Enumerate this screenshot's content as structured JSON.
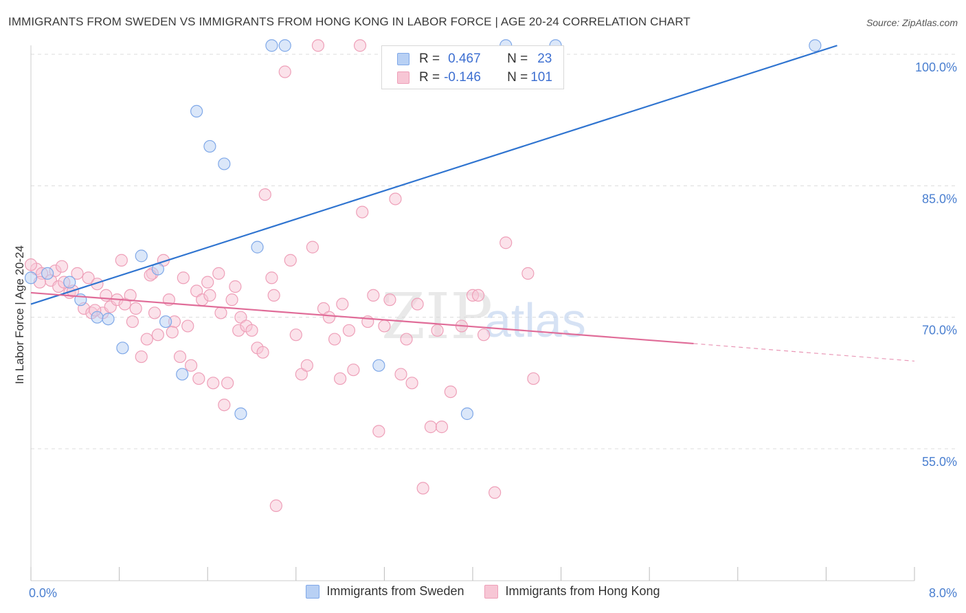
{
  "title": "IMMIGRANTS FROM SWEDEN VS IMMIGRANTS FROM HONG KONG IN LABOR FORCE | AGE 20-24 CORRELATION CHART",
  "source": "Source: ZipAtlas.com",
  "watermark": {
    "zip": "ZIP",
    "atlas": "atlas"
  },
  "colors": {
    "sweden": "#7fa8e8",
    "sweden_fill": "#b8d0f4",
    "sweden_line": "#2f74d0",
    "hongkong": "#ee9fb8",
    "hongkong_fill": "#f7c6d5",
    "hongkong_line": "#e06c98",
    "axis_label": "#4a7fd0"
  },
  "stats": {
    "sweden": {
      "r_label": "R =",
      "r_value": "0.467",
      "n_label": "N =",
      "n_value": "23"
    },
    "hongkong": {
      "r_label": "R =",
      "r_value": "-0.146",
      "n_label": "N =",
      "n_value": "101"
    }
  },
  "legend": {
    "sweden": "Immigrants from Sweden",
    "hongkong": "Immigrants from Hong Kong"
  },
  "chart_data": {
    "type": "scatter",
    "xlabel": "",
    "ylabel": "In Labor Force | Age 20-24",
    "xlim": [
      0.0,
      8.0
    ],
    "ylim": [
      40.0,
      101.5
    ],
    "x_tick_labels": [
      {
        "value": 0.0,
        "label": "0.0%"
      },
      {
        "value": 8.0,
        "label": "8.0%"
      }
    ],
    "y_tick_labels": [
      {
        "value": 100.0,
        "label": "100.0%"
      },
      {
        "value": 85.0,
        "label": "85.0%"
      },
      {
        "value": 70.0,
        "label": "70.0%"
      },
      {
        "value": 55.0,
        "label": "55.0%"
      }
    ],
    "gridlines": [
      100.0,
      85.0,
      70.0,
      55.0
    ],
    "series": [
      {
        "name": "Immigrants from Sweden",
        "key": "sweden",
        "points": [
          [
            0.0,
            74.5
          ],
          [
            0.15,
            75.0
          ],
          [
            0.35,
            74.0
          ],
          [
            0.45,
            72.0
          ],
          [
            0.6,
            70.0
          ],
          [
            0.7,
            69.8
          ],
          [
            0.83,
            66.5
          ],
          [
            1.0,
            77.0
          ],
          [
            1.15,
            75.5
          ],
          [
            1.22,
            69.5
          ],
          [
            1.37,
            63.5
          ],
          [
            1.5,
            93.5
          ],
          [
            1.62,
            89.5
          ],
          [
            1.75,
            87.5
          ],
          [
            1.9,
            59.0
          ],
          [
            2.05,
            78.0
          ],
          [
            2.18,
            101.0
          ],
          [
            2.3,
            101.0
          ],
          [
            3.15,
            64.5
          ],
          [
            3.95,
            59.0
          ],
          [
            4.3,
            101.0
          ],
          [
            4.75,
            101.0
          ],
          [
            7.1,
            101.0
          ]
        ],
        "trend": {
          "x": [
            0.0,
            7.3
          ],
          "y": [
            71.5,
            101.0
          ]
        }
      },
      {
        "name": "Immigrants from Hong Kong",
        "key": "hongkong",
        "points": [
          [
            0.05,
            75.5
          ],
          [
            0.1,
            75.0
          ],
          [
            0.18,
            74.2
          ],
          [
            0.22,
            75.3
          ],
          [
            0.25,
            73.5
          ],
          [
            0.3,
            74.0
          ],
          [
            0.35,
            72.8
          ],
          [
            0.38,
            73.0
          ],
          [
            0.42,
            75.0
          ],
          [
            0.48,
            71.0
          ],
          [
            0.52,
            74.5
          ],
          [
            0.55,
            70.5
          ],
          [
            0.6,
            73.8
          ],
          [
            0.65,
            70.5
          ],
          [
            0.68,
            72.5
          ],
          [
            0.72,
            71.2
          ],
          [
            0.78,
            72.0
          ],
          [
            0.82,
            76.5
          ],
          [
            0.85,
            71.5
          ],
          [
            0.9,
            72.5
          ],
          [
            0.92,
            69.5
          ],
          [
            0.95,
            71.0
          ],
          [
            1.0,
            65.5
          ],
          [
            1.05,
            67.5
          ],
          [
            1.1,
            75.0
          ],
          [
            1.12,
            70.5
          ],
          [
            1.15,
            68.0
          ],
          [
            1.2,
            76.5
          ],
          [
            1.25,
            72.0
          ],
          [
            1.3,
            69.5
          ],
          [
            1.35,
            65.5
          ],
          [
            1.38,
            74.5
          ],
          [
            1.42,
            69.0
          ],
          [
            1.45,
            64.5
          ],
          [
            1.5,
            73.0
          ],
          [
            1.52,
            63.0
          ],
          [
            1.55,
            72.0
          ],
          [
            1.6,
            74.0
          ],
          [
            1.62,
            72.5
          ],
          [
            1.65,
            62.5
          ],
          [
            1.7,
            75.0
          ],
          [
            1.72,
            70.5
          ],
          [
            1.75,
            60.0
          ],
          [
            1.78,
            62.5
          ],
          [
            1.82,
            72.0
          ],
          [
            1.85,
            73.5
          ],
          [
            1.88,
            68.5
          ],
          [
            1.9,
            70.0
          ],
          [
            1.95,
            69.0
          ],
          [
            2.0,
            68.5
          ],
          [
            2.05,
            66.5
          ],
          [
            2.1,
            66.0
          ],
          [
            2.12,
            84.0
          ],
          [
            2.18,
            74.5
          ],
          [
            2.2,
            72.5
          ],
          [
            2.22,
            48.5
          ],
          [
            2.3,
            98.0
          ],
          [
            2.35,
            76.5
          ],
          [
            2.4,
            68.0
          ],
          [
            2.45,
            63.5
          ],
          [
            2.5,
            64.5
          ],
          [
            2.55,
            78.0
          ],
          [
            2.6,
            101.0
          ],
          [
            2.65,
            71.0
          ],
          [
            2.7,
            70.0
          ],
          [
            2.75,
            67.5
          ],
          [
            2.8,
            63.0
          ],
          [
            2.82,
            71.5
          ],
          [
            2.88,
            68.5
          ],
          [
            2.92,
            64.0
          ],
          [
            2.98,
            101.0
          ],
          [
            3.0,
            82.0
          ],
          [
            3.05,
            69.5
          ],
          [
            3.1,
            72.5
          ],
          [
            3.15,
            57.0
          ],
          [
            3.2,
            69.0
          ],
          [
            3.25,
            72.0
          ],
          [
            3.3,
            83.5
          ],
          [
            3.35,
            63.5
          ],
          [
            3.4,
            67.5
          ],
          [
            3.45,
            62.5
          ],
          [
            3.5,
            71.5
          ],
          [
            3.55,
            50.5
          ],
          [
            3.62,
            57.5
          ],
          [
            3.68,
            68.5
          ],
          [
            3.72,
            57.5
          ],
          [
            3.8,
            61.5
          ],
          [
            3.9,
            69.0
          ],
          [
            4.0,
            72.5
          ],
          [
            4.05,
            72.5
          ],
          [
            4.1,
            68.0
          ],
          [
            4.2,
            50.0
          ],
          [
            4.3,
            78.5
          ],
          [
            4.5,
            75.0
          ],
          [
            4.55,
            63.0
          ],
          [
            0.0,
            76.0
          ],
          [
            0.08,
            74.0
          ],
          [
            0.28,
            75.8
          ],
          [
            0.58,
            70.8
          ],
          [
            1.08,
            74.8
          ],
          [
            1.28,
            68.3
          ]
        ],
        "trend": {
          "x": [
            0.0,
            6.0
          ],
          "y": [
            72.8,
            67.0
          ]
        },
        "trend_dashed": {
          "x": [
            6.0,
            8.0
          ],
          "y": [
            67.0,
            65.0
          ]
        }
      }
    ]
  }
}
